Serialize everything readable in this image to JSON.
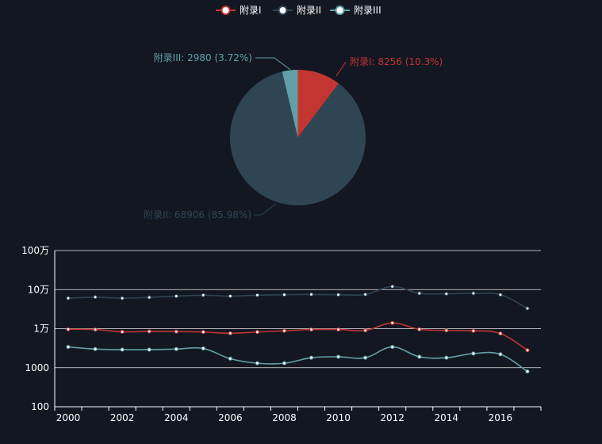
{
  "colors": {
    "background": "#131722",
    "series_a": "#c23531",
    "series_b": "#2f4554",
    "series_c": "#61a0a8",
    "grid": "#ffffff",
    "text": "#ffffff",
    "point_fill": "#ffffff"
  },
  "chart_data": [
    {
      "type": "pie",
      "legend": {
        "position": "top-center",
        "items": [
          "附录I",
          "附录II",
          "附录III"
        ]
      },
      "slices": [
        {
          "name": "附录I",
          "value": 8256,
          "percent": "10.3%",
          "label": "附录I: 8256 (10.3%)"
        },
        {
          "name": "附录II",
          "value": 68906,
          "percent": "85.98%",
          "label": "附录II: 68906 (85.98%)"
        },
        {
          "name": "附录III",
          "value": 2980,
          "percent": "3.72%",
          "label": "附录III: 2980 (3.72%)"
        }
      ]
    },
    {
      "type": "line",
      "x_ticks": [
        "2000",
        "2002",
        "2004",
        "2006",
        "2008",
        "2010",
        "2012",
        "2014",
        "2016"
      ],
      "x": [
        2000,
        2001,
        2002,
        2003,
        2004,
        2005,
        2006,
        2007,
        2008,
        2009,
        2010,
        2011,
        2012,
        2013,
        2014,
        2015,
        2016,
        2017
      ],
      "yscale": "log",
      "ylim": [
        100,
        1000000
      ],
      "y_ticks": [
        {
          "value": 100,
          "label": "100"
        },
        {
          "value": 1000,
          "label": "1000"
        },
        {
          "value": 10000,
          "label": "1万"
        },
        {
          "value": 100000,
          "label": "10万"
        },
        {
          "value": 1000000,
          "label": "100万"
        }
      ],
      "grid": true,
      "smooth": true,
      "series": [
        {
          "name": "附录I",
          "values": [
            9600,
            9500,
            8300,
            8500,
            8400,
            8200,
            7600,
            8200,
            8800,
            9500,
            9500,
            9000,
            14000,
            9600,
            9000,
            8800,
            7500,
            2800
          ]
        },
        {
          "name": "附录II",
          "values": [
            60000,
            64000,
            60000,
            63000,
            68000,
            72000,
            68000,
            72000,
            74000,
            75000,
            74000,
            75000,
            120000,
            80000,
            78000,
            80000,
            74000,
            33000
          ]
        },
        {
          "name": "附录III",
          "values": [
            3400,
            3000,
            2900,
            2900,
            3000,
            3100,
            1700,
            1300,
            1300,
            1800,
            1900,
            1800,
            3400,
            1900,
            1800,
            2300,
            2200,
            800
          ]
        }
      ]
    }
  ]
}
